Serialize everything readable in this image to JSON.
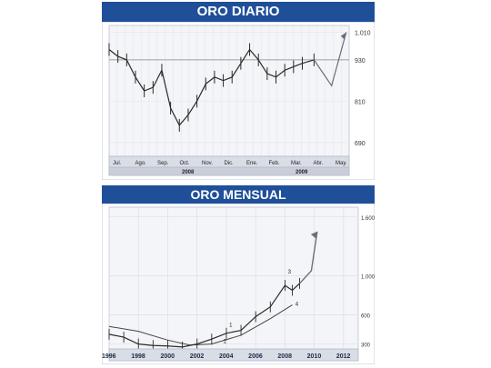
{
  "colors": {
    "band": "#1f4f99",
    "chart_bg": "#f4f5f8",
    "axis_bar": "#d9dde6",
    "line": "#2b2b2b",
    "arrow": "#6a6f7a"
  },
  "chart_data": [
    {
      "type": "line",
      "title": "ORO DIARIO",
      "subtitle": "",
      "ylabel": "",
      "yticks": [
        "1.010",
        "930",
        "810",
        "690"
      ],
      "ytick_values": [
        1010,
        930,
        810,
        690
      ],
      "ylim": [
        650,
        1030
      ],
      "reference_level": 930,
      "xlabels": [
        "Jul.",
        "Ago.",
        "Sep.",
        "Oct.",
        "Nov.",
        "Dic.",
        "Ene.",
        "Feb.",
        "Mar.",
        "Abr.",
        "May."
      ],
      "years": [
        "2008",
        "2009"
      ],
      "grid": true,
      "series": [
        {
          "name": "",
          "x": [
            0,
            3,
            6,
            9,
            12,
            15,
            18,
            21,
            24,
            27,
            30,
            33,
            36,
            39,
            42,
            45,
            48,
            51,
            54,
            57,
            60,
            63,
            66,
            70
          ],
          "values": [
            960,
            940,
            930,
            880,
            840,
            850,
            900,
            790,
            740,
            770,
            810,
            860,
            880,
            870,
            880,
            920,
            960,
            930,
            890,
            880,
            900,
            910,
            920,
            930
          ]
        }
      ],
      "projection": {
        "x": [
          70,
          76,
          81
        ],
        "values": [
          930,
          855,
          1010
        ]
      },
      "xlim": [
        0,
        82
      ]
    },
    {
      "type": "line",
      "title": "ORO MENSUAL",
      "subtitle": "",
      "ylabel": "",
      "yticks": [
        "1.600",
        "1.000",
        "600",
        "300"
      ],
      "ytick_values": [
        1600,
        1000,
        600,
        300
      ],
      "ylim": [
        250,
        1700
      ],
      "xticks": [
        "1996",
        "1998",
        "2000",
        "2002",
        "2004",
        "2006",
        "2008",
        "2010",
        "2012"
      ],
      "xtick_values": [
        1996,
        1998,
        2000,
        2002,
        2004,
        2006,
        2008,
        2010,
        2012
      ],
      "xlim": [
        1996,
        2013
      ],
      "grid": true,
      "annotations": [
        "1",
        "2",
        "3",
        "4"
      ],
      "series": [
        {
          "name": "",
          "x": [
            1996,
            1997,
            1998,
            1999,
            2000,
            2001,
            2002,
            2003,
            2004,
            2005,
            2006,
            2007,
            2008,
            2008.5,
            2009
          ],
          "values": [
            400,
            370,
            300,
            285,
            280,
            270,
            300,
            350,
            410,
            440,
            580,
            680,
            900,
            850,
            920
          ]
        }
      ],
      "trend": {
        "x": [
          1996,
          1998,
          2000,
          2001.5,
          2003,
          2005,
          2007,
          2008.5
        ],
        "values": [
          480,
          430,
          340,
          290,
          300,
          390,
          560,
          700
        ]
      },
      "projection": {
        "x": [
          2009,
          2009.8,
          2010.2
        ],
        "values": [
          920,
          1050,
          1450
        ]
      }
    }
  ]
}
